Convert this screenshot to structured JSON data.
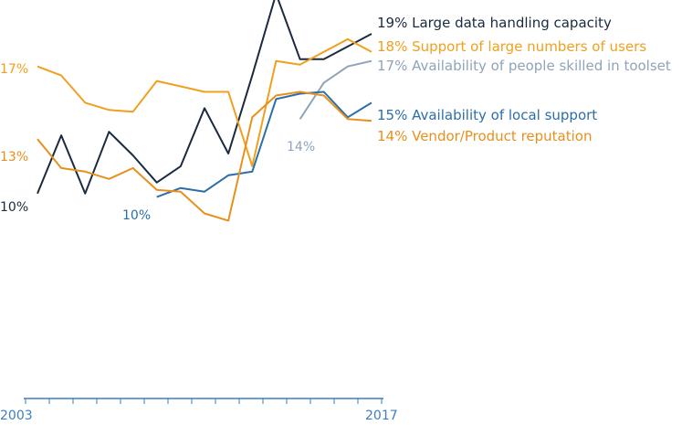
{
  "chart_data": {
    "type": "line",
    "x_start_label": "2003",
    "x_end_label": "2017",
    "x": [
      2003,
      2004,
      2005,
      2006,
      2007,
      2008,
      2009,
      2010,
      2011,
      2012,
      2013,
      2014,
      2015,
      2016,
      2017
    ],
    "axis_color": "#3a7fc1",
    "series": [
      {
        "name": "Large data handling capacity",
        "color": "#1b2a3e",
        "end_label": "19% Large data handling capacity",
        "start_label": "10%",
        "values": [
          10,
          13.2,
          10,
          13.4,
          12.1,
          10.6,
          11.5,
          14.7,
          12.2,
          16.5,
          21.0,
          17.4,
          17.4,
          18.1,
          18.8
        ]
      },
      {
        "name": "Support of large numbers of users",
        "color": "#f0a01e",
        "end_label": "18% Support of large numbers of users",
        "start_label": "17%",
        "values": [
          17.0,
          16.5,
          15.0,
          14.6,
          14.5,
          16.2,
          15.9,
          15.6,
          15.6,
          11.5,
          17.3,
          17.1,
          17.8,
          18.5,
          17.8
        ]
      },
      {
        "name": "Availability of people skilled in toolset",
        "color": "#8fa4ba",
        "end_label": "17% Availability of people skilled in toolset",
        "start_label": "14%",
        "values": [
          null,
          null,
          null,
          null,
          null,
          null,
          null,
          null,
          null,
          null,
          null,
          14.1,
          16.1,
          17.0,
          17.3
        ]
      },
      {
        "name": "Availability of local support",
        "color": "#2c6ea8",
        "end_label": "15% Availability of local support",
        "start_label": "10%",
        "values": [
          null,
          null,
          null,
          null,
          null,
          9.8,
          10.3,
          10.1,
          11.0,
          11.2,
          15.2,
          15.5,
          15.6,
          14.2,
          15.0
        ]
      },
      {
        "name": "Vendor/Product reputation",
        "color": "#e8901e",
        "end_label": "14% Vendor/Product reputation",
        "start_label": "13%",
        "values": [
          13.0,
          11.4,
          11.2,
          10.8,
          11.4,
          10.2,
          10.1,
          8.9,
          8.5,
          14.2,
          15.4,
          15.6,
          15.4,
          14.1,
          14.0
        ]
      }
    ]
  }
}
